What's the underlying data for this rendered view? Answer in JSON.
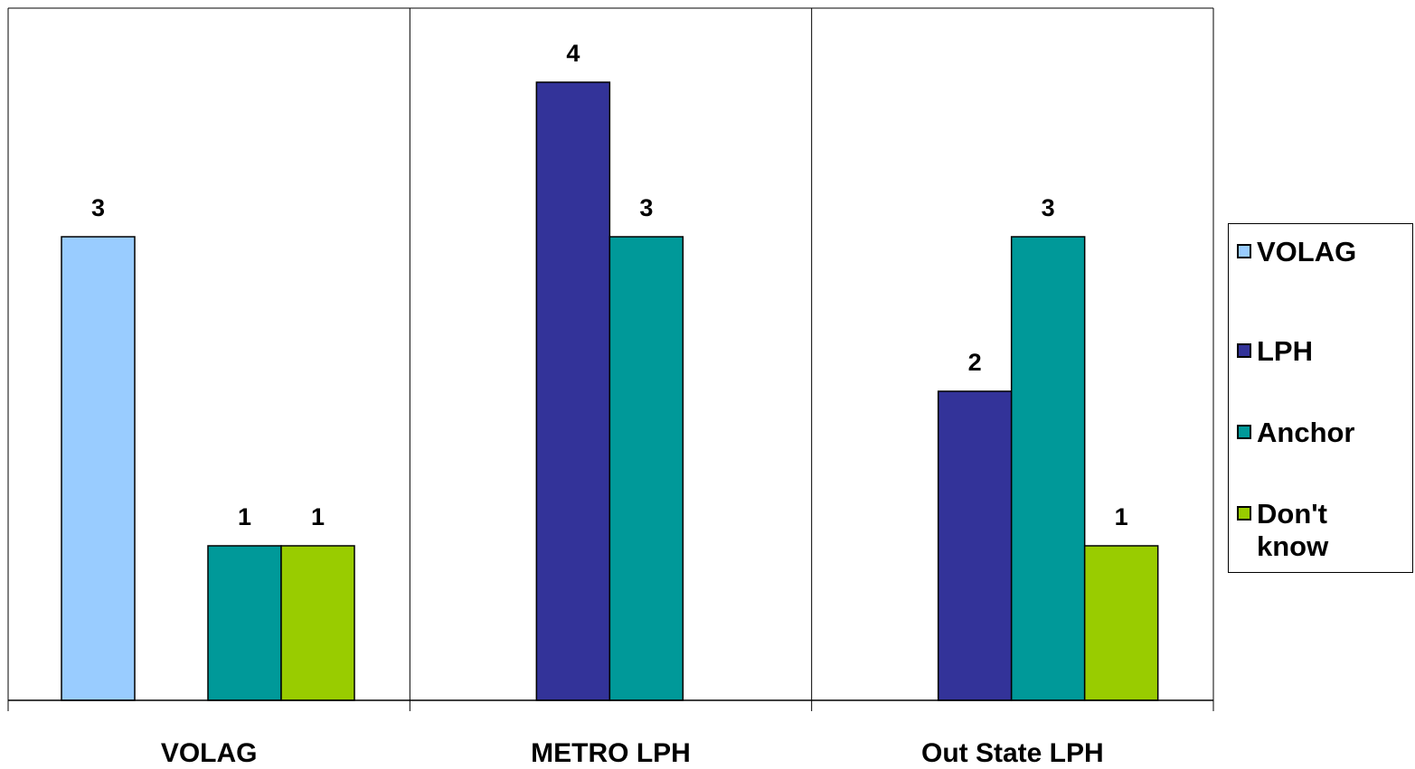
{
  "chart_data": {
    "type": "bar",
    "categories": [
      "VOLAG",
      "METRO LPH",
      "Out State LPH"
    ],
    "series": [
      {
        "name": "VOLAG",
        "color": "#99ccff",
        "values": [
          3,
          null,
          null
        ]
      },
      {
        "name": "LPH",
        "color": "#333399",
        "values": [
          null,
          4,
          2
        ]
      },
      {
        "name": "Anchor",
        "color": "#009999",
        "values": [
          1,
          3,
          3
        ]
      },
      {
        "name": "Don't know",
        "color": "#99cc00",
        "values": [
          1,
          null,
          1
        ]
      }
    ],
    "ylim": [
      0,
      4.5
    ],
    "grid": false,
    "legend_position": "right"
  }
}
